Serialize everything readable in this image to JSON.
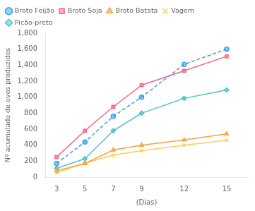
{
  "chart_data": {
    "type": "line",
    "xlabel": "(Dias)",
    "ylabel": "Nº acumulado de ovos produzidos",
    "x": [
      3,
      5,
      7,
      9,
      12,
      15
    ],
    "series": [
      {
        "name": "Broto Feijão",
        "values": [
          170,
          440,
          760,
          1000,
          1410,
          1600
        ],
        "marker": "circle",
        "line_style": "dashed"
      },
      {
        "name": "Broto Soja",
        "values": [
          250,
          580,
          880,
          1150,
          1330,
          1510
        ],
        "marker": "square",
        "line_style": "solid"
      },
      {
        "name": "Broto Batata",
        "values": [
          80,
          170,
          340,
          400,
          465,
          540
        ],
        "marker": "triangle",
        "line_style": "solid"
      },
      {
        "name": "Vagem",
        "values": [
          55,
          175,
          275,
          330,
          400,
          460
        ],
        "marker": "x",
        "line_style": "solid"
      },
      {
        "name": "Picão-preto",
        "values": [
          110,
          230,
          580,
          800,
          985,
          1090
        ],
        "marker": "diamond",
        "line_style": "solid"
      }
    ],
    "xlim": [
      2.2,
      16.5
    ],
    "xticks": [
      3,
      5,
      7,
      9,
      12,
      15
    ],
    "ylim": [
      0,
      1800
    ],
    "yticks": [
      0,
      200,
      400,
      600,
      800,
      1000,
      1200,
      1400,
      1600,
      1800
    ],
    "grid": false,
    "legend": "upper left"
  }
}
